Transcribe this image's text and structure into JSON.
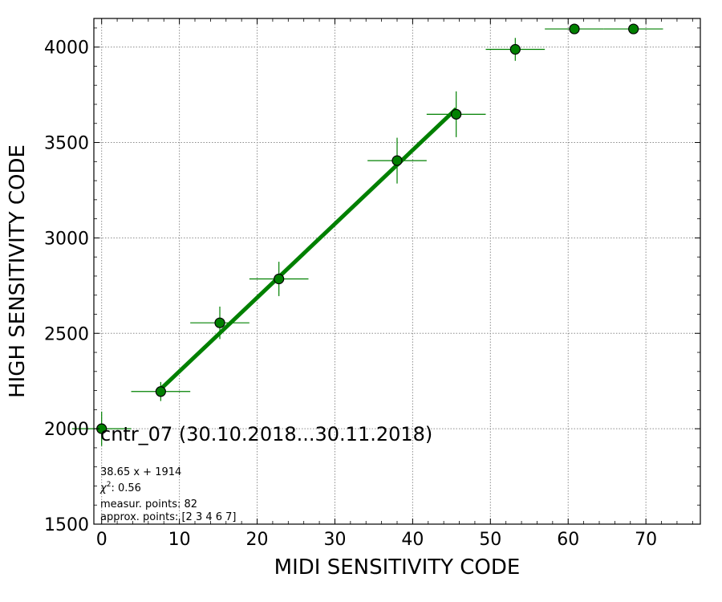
{
  "chart_data": {
    "type": "scatter",
    "xlabel": "MIDI SENSITIVITY CODE",
    "ylabel": "HIGH SENSITIVITY CODE",
    "xlim": [
      -1,
      77
    ],
    "ylim": [
      1500,
      4150
    ],
    "xticks": [
      0,
      10,
      20,
      30,
      40,
      50,
      60,
      70
    ],
    "yticks": [
      1500,
      2000,
      2500,
      3000,
      3500,
      4000
    ],
    "grid": true,
    "marker_color": "#008000",
    "line_color": "#008000",
    "points": [
      {
        "x": 0.0,
        "y": 2000,
        "xerr": 3.8,
        "yerr": 90
      },
      {
        "x": 7.6,
        "y": 2195,
        "xerr": 3.8,
        "yerr": 50
      },
      {
        "x": 15.2,
        "y": 2555,
        "xerr": 3.8,
        "yerr": 85
      },
      {
        "x": 22.8,
        "y": 2785,
        "xerr": 3.8,
        "yerr": 90
      },
      {
        "x": 38.0,
        "y": 3405,
        "xerr": 3.8,
        "yerr": 120
      },
      {
        "x": 45.6,
        "y": 3648,
        "xerr": 3.8,
        "yerr": 120
      },
      {
        "x": 53.2,
        "y": 3988,
        "xerr": 3.8,
        "yerr": 60
      },
      {
        "x": 60.8,
        "y": 4095,
        "xerr": 3.8,
        "yerr": 0
      },
      {
        "x": 68.4,
        "y": 4095,
        "xerr": 3.8,
        "yerr": 0
      }
    ],
    "fit": {
      "slope": 38.65,
      "intercept": 1914,
      "x_range": [
        7.6,
        45.6
      ]
    },
    "annotation": {
      "title": "cntr_07 (30.10.2018...30.11.2018)",
      "equation": "38.65 x + 1914",
      "chi2_label": "χ",
      "chi2_sup": "2",
      "chi2_value": ": 0.56",
      "measur_points": "measur. points: 82",
      "approx_points": "approx. points: [2 3 4 6 7]"
    }
  }
}
